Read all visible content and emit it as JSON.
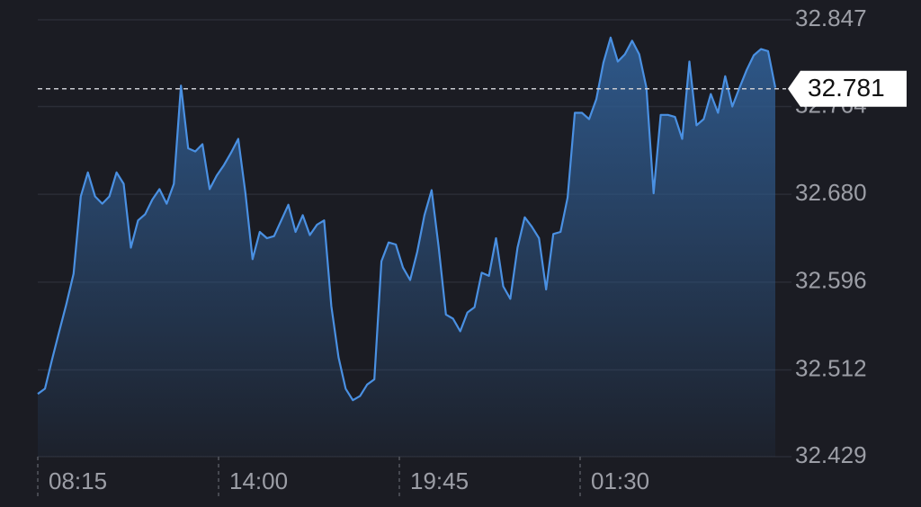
{
  "chart_data": {
    "type": "line",
    "series": [
      {
        "color": "#4a90e2",
        "values": [
          32.489,
          32.494,
          32.522,
          32.549,
          32.575,
          32.604,
          32.678,
          32.701,
          32.678,
          32.671,
          32.678,
          32.701,
          32.69,
          32.629,
          32.655,
          32.661,
          32.675,
          32.685,
          32.671,
          32.69,
          32.784,
          32.724,
          32.721,
          32.728,
          32.685,
          32.698,
          32.708,
          32.72,
          32.733,
          32.681,
          32.618,
          32.644,
          32.638,
          32.64,
          32.655,
          32.67,
          32.644,
          32.66,
          32.641,
          32.651,
          32.655,
          32.573,
          32.524,
          32.494,
          32.483,
          32.487,
          32.498,
          32.503,
          32.616,
          32.634,
          32.632,
          32.61,
          32.598,
          32.625,
          32.66,
          32.684,
          32.629,
          32.565,
          32.561,
          32.549,
          32.567,
          32.572,
          32.605,
          32.602,
          32.638,
          32.592,
          32.58,
          32.629,
          32.658,
          32.649,
          32.638,
          32.589,
          32.642,
          32.644,
          32.677,
          32.758,
          32.758,
          32.752,
          32.771,
          32.806,
          32.83,
          32.807,
          32.814,
          32.827,
          32.814,
          32.782,
          32.681,
          32.756,
          32.756,
          32.754,
          32.733,
          32.807,
          32.746,
          32.752,
          32.776,
          32.758,
          32.793,
          32.764,
          32.782,
          32.799,
          32.813,
          32.819,
          32.817,
          32.782
        ]
      }
    ],
    "ylim": [
      32.429,
      32.847
    ],
    "yticks": [
      32.429,
      32.512,
      32.596,
      {
        "value": 32.68,
        "label": "32.680"
      },
      32.764,
      32.847
    ],
    "x_tick_labels": [
      "08:15",
      "14:00",
      "19:45",
      "01:30"
    ],
    "last_price": 32.781,
    "grid": true
  }
}
